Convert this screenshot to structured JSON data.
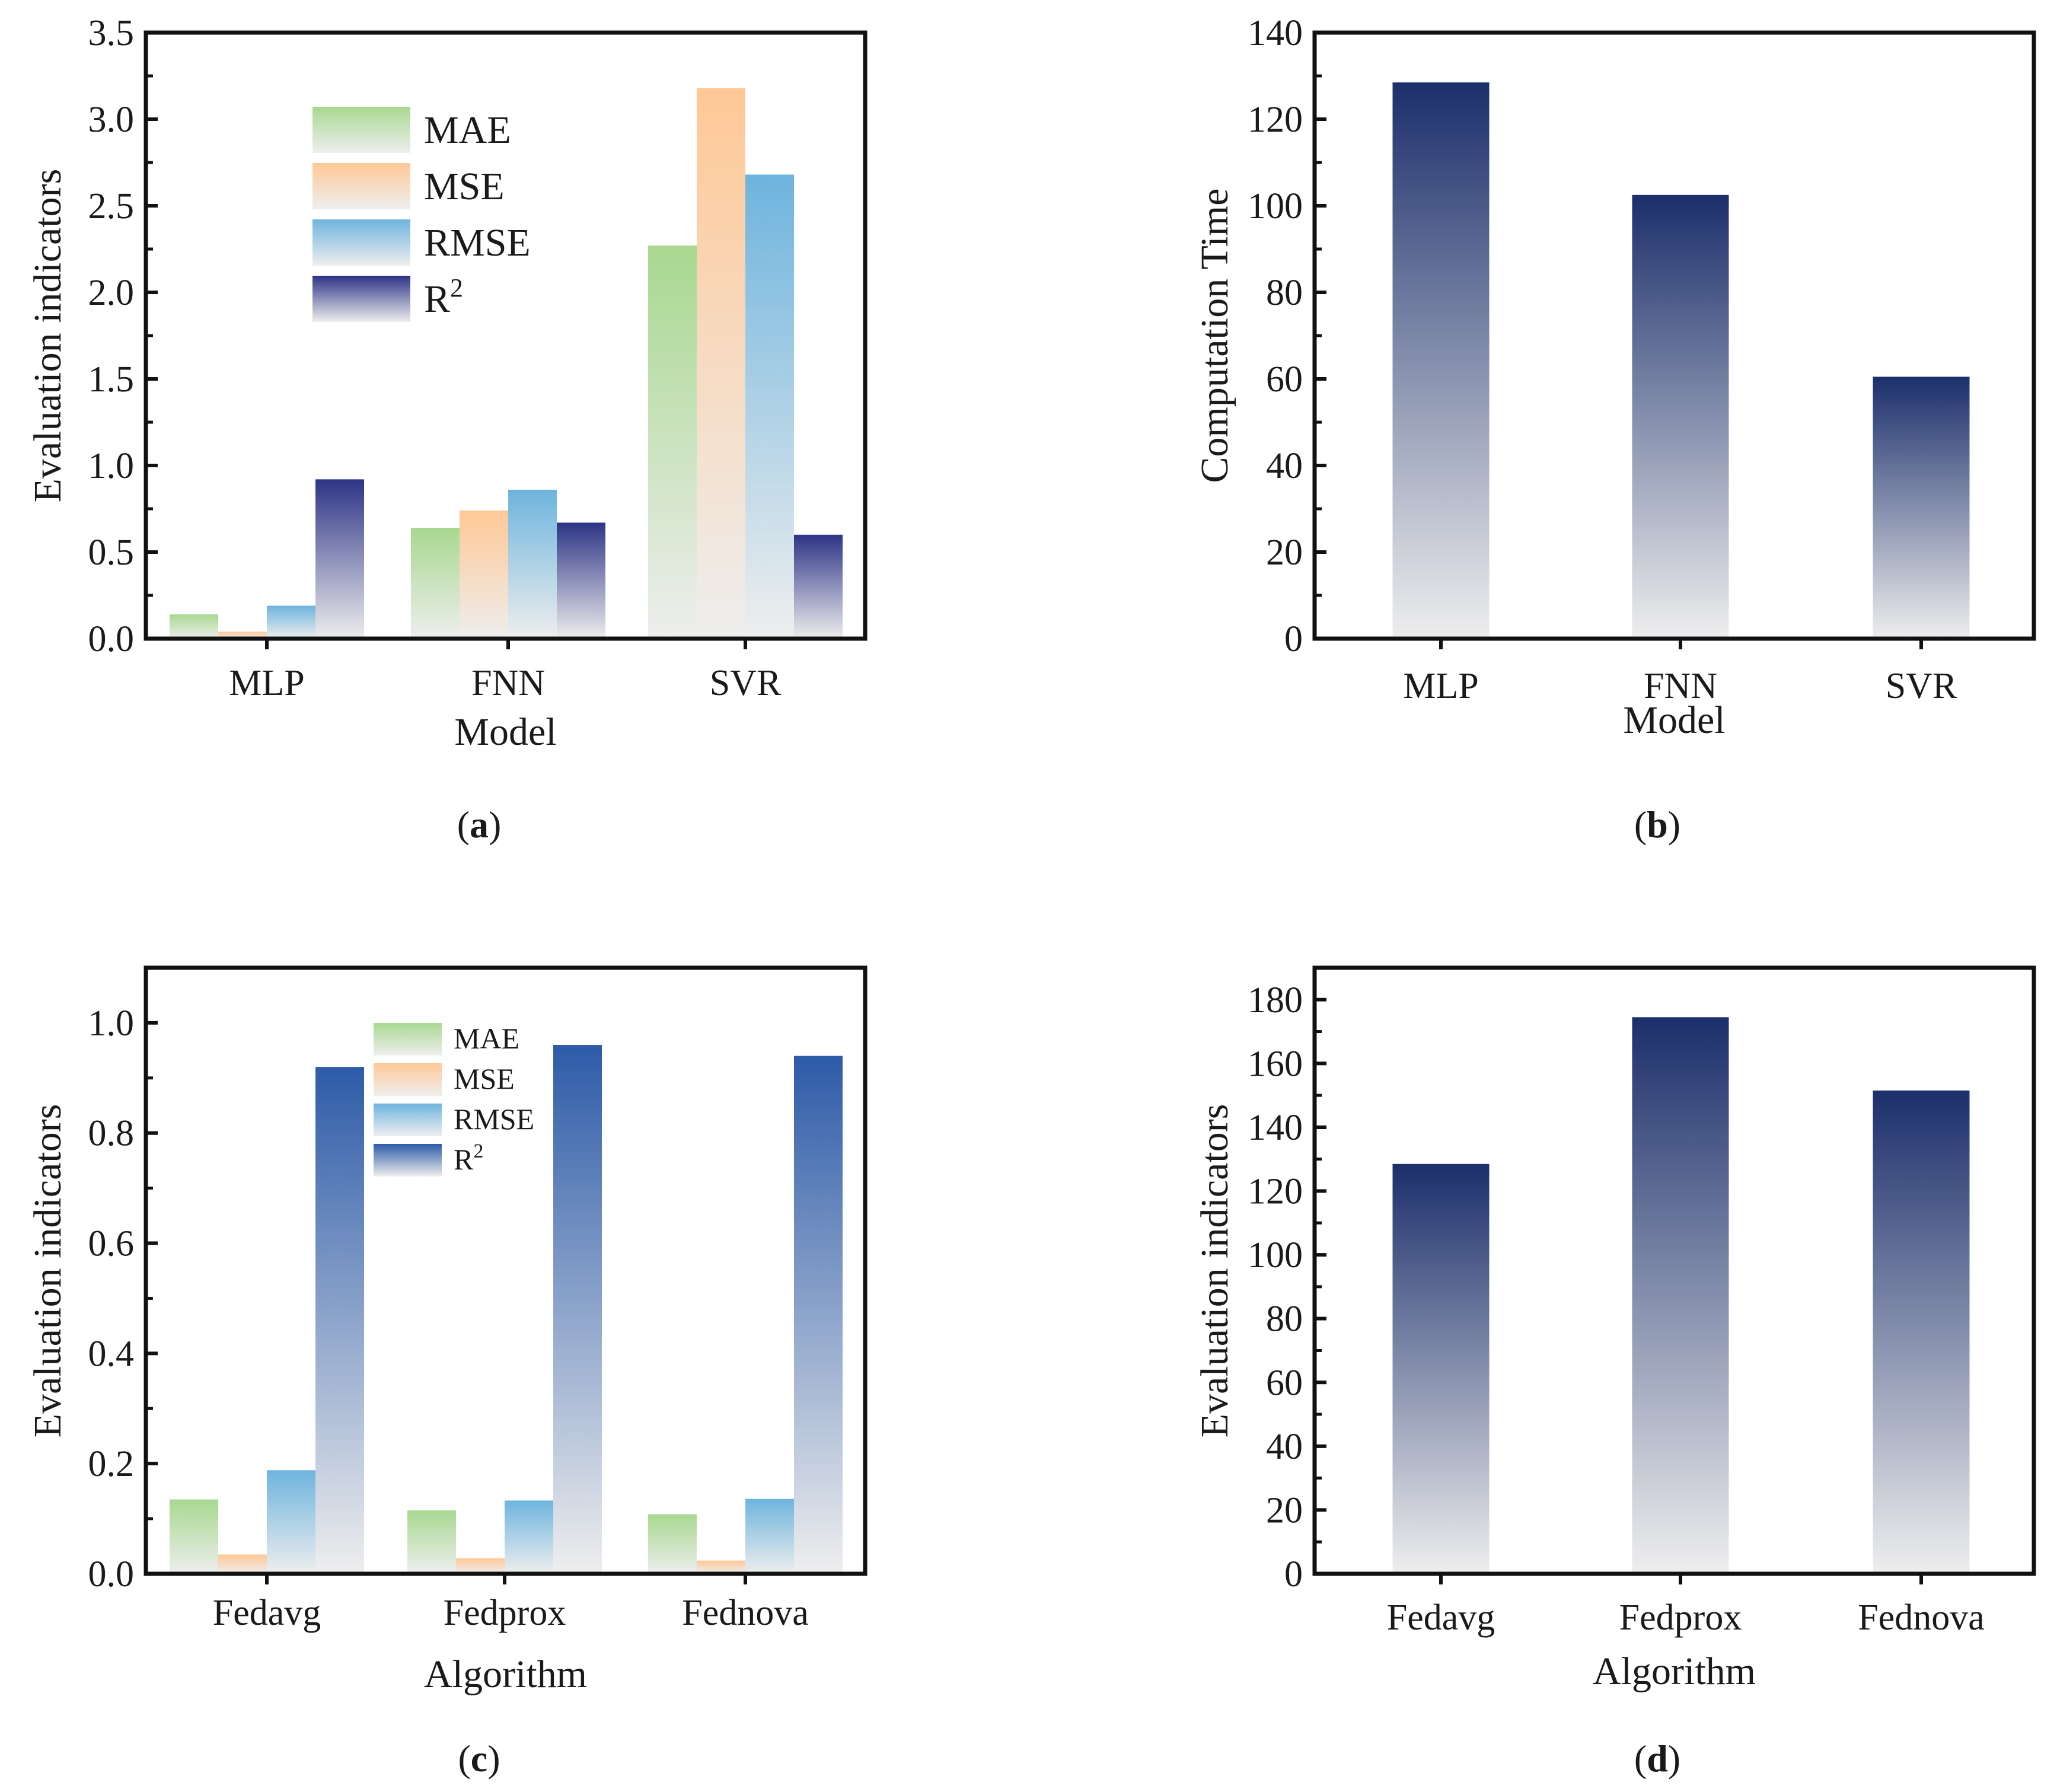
{
  "palette": {
    "mae": "#a8d890",
    "mse": "#ffc896",
    "rmse": "#6eb4de",
    "r2_a": "#2e3486",
    "r2_c": "#2d5ba8",
    "time": "#1b2f6b",
    "bar_bottom": "#eeeeee"
  },
  "chart_data": [
    {
      "id": "a",
      "caption": {
        "open": "(",
        "letter": "a",
        "close": ")"
      },
      "type": "bar",
      "categories": [
        "MLP",
        "FNN",
        "SVR"
      ],
      "series": [
        {
          "name": "MAE",
          "key": "mae",
          "values": [
            0.14,
            0.64,
            2.27
          ]
        },
        {
          "name": "MSE",
          "key": "mse",
          "values": [
            0.04,
            0.74,
            3.18
          ]
        },
        {
          "name": "RMSE",
          "key": "rmse",
          "values": [
            0.19,
            0.86,
            2.68
          ]
        },
        {
          "name": "R",
          "sup": "2",
          "key": "r2_a",
          "values": [
            0.92,
            0.67,
            0.6
          ]
        }
      ],
      "xlabel": "Model",
      "ylabel": "Evaluation indicators",
      "ylim": [
        0,
        3.5
      ],
      "yticks": [
        "0.0",
        "0.5",
        "1.0",
        "1.5",
        "2.0",
        "2.5",
        "3.0",
        "3.5"
      ],
      "ytick_step": 0.5,
      "legend": "top-center",
      "grid": false
    },
    {
      "id": "b",
      "caption": {
        "open": "(",
        "letter": "b",
        "close": ")"
      },
      "type": "bar",
      "categories": [
        "MLP",
        "FNN",
        "SVR"
      ],
      "series": [
        {
          "name": "Computation Time",
          "key": "time",
          "values": [
            128.5,
            102.5,
            60.5
          ]
        }
      ],
      "xlabel": "Model",
      "ylabel": "Computation Time",
      "ylim": [
        0,
        140
      ],
      "yticks": [
        "0",
        "20",
        "40",
        "60",
        "80",
        "100",
        "120",
        "140"
      ],
      "ytick_step": 20,
      "grid": false
    },
    {
      "id": "c",
      "caption": {
        "open": "(",
        "letter": "c",
        "close": ")"
      },
      "type": "bar",
      "categories": [
        "Fedavg",
        "Fedprox",
        "Fednova"
      ],
      "series": [
        {
          "name": "MAE",
          "key": "mae",
          "values": [
            0.135,
            0.115,
            0.108
          ]
        },
        {
          "name": "MSE",
          "key": "mse",
          "values": [
            0.035,
            0.028,
            0.024
          ]
        },
        {
          "name": "RMSE",
          "key": "rmse",
          "values": [
            0.188,
            0.133,
            0.136
          ]
        },
        {
          "name": "R",
          "sup": "2",
          "key": "r2_c",
          "values": [
            0.92,
            0.96,
            0.94
          ]
        }
      ],
      "xlabel": "Algorithm",
      "ylabel": "Evaluation indicators",
      "ylim": [
        0,
        1.1
      ],
      "yticks": [
        "0.0",
        "0.2",
        "0.4",
        "0.6",
        "0.8",
        "1.0"
      ],
      "ytick_step": 0.2,
      "legend": "top-center",
      "grid": false
    },
    {
      "id": "d",
      "caption": {
        "open": "(",
        "letter": "d",
        "close": ")"
      },
      "type": "bar",
      "categories": [
        "Fedavg",
        "Fedprox",
        "Fednova"
      ],
      "series": [
        {
          "name": "Evaluation indicators",
          "key": "time",
          "values": [
            128.5,
            174.5,
            151.5
          ]
        }
      ],
      "xlabel": "Algorithm",
      "ylabel": "Evaluation indicators",
      "ylim": [
        0,
        190
      ],
      "yticks": [
        "0",
        "20",
        "40",
        "60",
        "80",
        "100",
        "120",
        "140",
        "160",
        "180"
      ],
      "ytick_step": 20,
      "grid": false
    }
  ]
}
